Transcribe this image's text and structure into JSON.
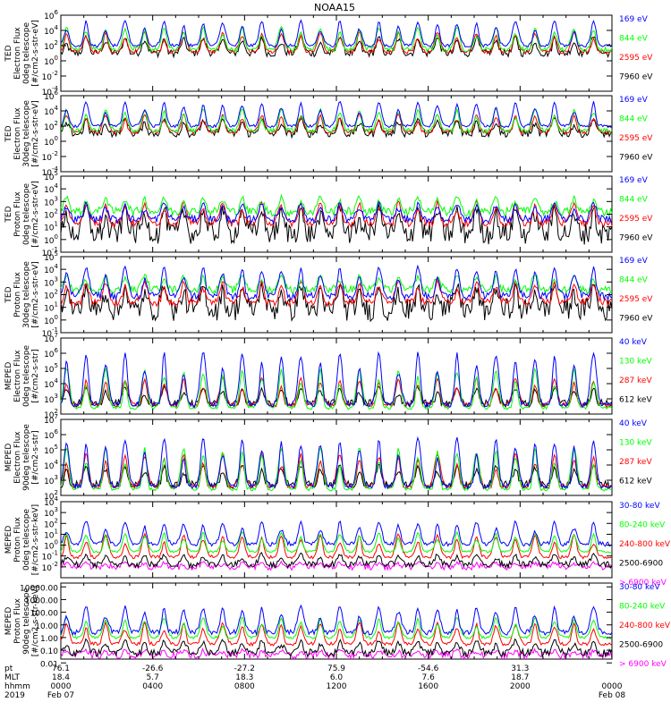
{
  "title": "NOAA15",
  "colors": {
    "black": "#000000",
    "blue": "#0000ff",
    "green": "#00ff00",
    "red": "#ff0000",
    "magenta": "#ff00ff",
    "gray": "#808080"
  },
  "chart_data": {
    "type": "line",
    "title": "NOAA15",
    "x_axis": {
      "row_labels": [
        "pt",
        "MLT",
        "hhmm",
        "2019"
      ],
      "ticks": [
        {
          "pt": "76.1",
          "mlt": "18.4",
          "hhmm": "0000",
          "date": "Feb 07"
        },
        {
          "pt": "-26.6",
          "mlt": "5.7",
          "hhmm": "0400",
          "date": ""
        },
        {
          "pt": "-27.2",
          "mlt": "18.3",
          "hhmm": "0800",
          "date": ""
        },
        {
          "pt": "75.9",
          "mlt": "6.0",
          "hhmm": "1200",
          "date": ""
        },
        {
          "pt": "-54.6",
          "mlt": "7.6",
          "hhmm": "1600",
          "date": ""
        },
        {
          "pt": "31.3",
          "mlt": "18.7",
          "hhmm": "2000",
          "date": ""
        },
        {
          "pt": "",
          "mlt": "",
          "hhmm": "0000",
          "date": "Feb 08"
        }
      ],
      "range_hours": [
        0,
        24
      ]
    },
    "panels": [
      {
        "ylabel": [
          "TED",
          "Electron Flux",
          "0deg telescope",
          "[#/cm2-s-str-eV]"
        ],
        "scale": "log",
        "ylim_exp": [
          -4,
          6
        ],
        "tick_labels": [
          {
            "v": "10",
            "e": "6"
          },
          {
            "v": "10",
            "e": "4"
          },
          {
            "v": "10",
            "e": "2"
          },
          {
            "v": "10",
            "e": "0"
          },
          {
            "v": "10",
            "e": "-2"
          },
          {
            "v": "10",
            "e": "-4"
          }
        ],
        "series": [
          {
            "name": "7960 eV",
            "color": "#000000",
            "base_exp": 1.0,
            "peak_exp": 3.2,
            "noise": 0.5
          },
          {
            "name": "2595 eV",
            "color": "#ff0000",
            "base_exp": 1.2,
            "peak_exp": 3.8,
            "noise": 0.25
          },
          {
            "name": "844 eV",
            "color": "#00ff00",
            "base_exp": 1.5,
            "peak_exp": 4.5,
            "noise": 0.3
          },
          {
            "name": "169 eV",
            "color": "#0000ff",
            "base_exp": 2.0,
            "peak_exp": 5.3,
            "noise": 0.2
          }
        ]
      },
      {
        "ylabel": [
          "TED",
          "Electron Flux",
          "30deg telescope",
          "[#/cm2-s-str-eV]"
        ],
        "scale": "log",
        "ylim_exp": [
          -4,
          6
        ],
        "tick_labels": [
          {
            "v": "10",
            "e": "6"
          },
          {
            "v": "10",
            "e": "4"
          },
          {
            "v": "10",
            "e": "2"
          },
          {
            "v": "10",
            "e": "0"
          },
          {
            "v": "10",
            "e": "-2"
          },
          {
            "v": "10",
            "e": "-4"
          }
        ],
        "series": [
          {
            "name": "7960 eV",
            "color": "#000000",
            "base_exp": 1.0,
            "peak_exp": 3.0,
            "noise": 0.5
          },
          {
            "name": "2595 eV",
            "color": "#ff0000",
            "base_exp": 1.2,
            "peak_exp": 3.6,
            "noise": 0.25
          },
          {
            "name": "844 eV",
            "color": "#00ff00",
            "base_exp": 1.4,
            "peak_exp": 4.3,
            "noise": 0.3
          },
          {
            "name": "169 eV",
            "color": "#0000ff",
            "base_exp": 2.0,
            "peak_exp": 5.2,
            "noise": 0.2
          }
        ]
      },
      {
        "ylabel": [
          "TED",
          "Proton Flux",
          "0deg telescope",
          "[#/cm2-s-str-eV]"
        ],
        "scale": "log",
        "ylim_exp": [
          -1,
          5
        ],
        "tick_labels": [
          {
            "v": "10",
            "e": "5"
          },
          {
            "v": "10",
            "e": "4"
          },
          {
            "v": "10",
            "e": "3"
          },
          {
            "v": "10",
            "e": "2"
          },
          {
            "v": "10",
            "e": "1"
          },
          {
            "v": "10",
            "e": "0"
          },
          {
            "v": "10",
            "e": "-1"
          }
        ],
        "series": [
          {
            "name": "7960 eV",
            "color": "#000000",
            "base_exp": 0.5,
            "peak_exp": 2.6,
            "noise": 0.9
          },
          {
            "name": "2595 eV",
            "color": "#ff0000",
            "base_exp": 1.3,
            "peak_exp": 3.0,
            "noise": 0.3
          },
          {
            "name": "844 eV",
            "color": "#00ff00",
            "base_exp": 2.2,
            "peak_exp": 3.4,
            "noise": 0.35
          },
          {
            "name": "169 eV",
            "color": "#0000ff",
            "base_exp": 1.6,
            "peak_exp": 2.9,
            "noise": 0.3
          }
        ]
      },
      {
        "ylabel": [
          "TED",
          "Proton Flux",
          "30deg telescope",
          "[#/cm2-s-str-eV]"
        ],
        "scale": "log",
        "ylim_exp": [
          -1,
          5
        ],
        "tick_labels": [
          {
            "v": "10",
            "e": "5"
          },
          {
            "v": "10",
            "e": "4"
          },
          {
            "v": "10",
            "e": "3"
          },
          {
            "v": "10",
            "e": "2"
          },
          {
            "v": "10",
            "e": "1"
          },
          {
            "v": "10",
            "e": "0"
          },
          {
            "v": "10",
            "e": "-1"
          }
        ],
        "series": [
          {
            "name": "7960 eV",
            "color": "#000000",
            "base_exp": 0.8,
            "peak_exp": 2.8,
            "noise": 0.9
          },
          {
            "name": "2595 eV",
            "color": "#ff0000",
            "base_exp": 1.4,
            "peak_exp": 3.1,
            "noise": 0.3
          },
          {
            "name": "844 eV",
            "color": "#00ff00",
            "base_exp": 2.4,
            "peak_exp": 3.6,
            "noise": 0.3
          },
          {
            "name": "169 eV",
            "color": "#0000ff",
            "base_exp": 1.9,
            "peak_exp": 4.2,
            "noise": 0.3
          }
        ]
      },
      {
        "ylabel": [
          "MEPED",
          "Electron Flux",
          "0deg telescope",
          "[#/cm2-s-str]"
        ],
        "scale": "log",
        "ylim_exp": [
          2,
          7
        ],
        "tick_labels": [
          {
            "v": "10",
            "e": "7"
          },
          {
            "v": "10",
            "e": "6"
          },
          {
            "v": "10",
            "e": "5"
          },
          {
            "v": "10",
            "e": "4"
          },
          {
            "v": "10",
            "e": "3"
          },
          {
            "v": "10",
            "e": "2"
          }
        ],
        "series": [
          {
            "name": "612 keV",
            "color": "#000000",
            "base_exp": 2.7,
            "peak_exp": 3.8,
            "noise": 0.25
          },
          {
            "name": "287 keV",
            "color": "#ff0000",
            "base_exp": 2.6,
            "peak_exp": 4.4,
            "noise": 0.15
          },
          {
            "name": "130 keV",
            "color": "#00ff00",
            "base_exp": 2.4,
            "peak_exp": 5.0,
            "noise": 0.1
          },
          {
            "name": "40 keV",
            "color": "#0000ff",
            "base_exp": 2.6,
            "peak_exp": 6.1,
            "noise": 0.15
          }
        ]
      },
      {
        "ylabel": [
          "MEPED",
          "Electron Flux",
          "90deg telescope",
          "[#/cm2-s-str]"
        ],
        "scale": "log",
        "ylim_exp": [
          2,
          7
        ],
        "tick_labels": [
          {
            "v": "10",
            "e": "7"
          },
          {
            "v": "10",
            "e": "6"
          },
          {
            "v": "10",
            "e": "5"
          },
          {
            "v": "10",
            "e": "4"
          },
          {
            "v": "10",
            "e": "3"
          },
          {
            "v": "10",
            "e": "2"
          }
        ],
        "series": [
          {
            "name": "612 keV",
            "color": "#000000",
            "base_exp": 2.7,
            "peak_exp": 4.0,
            "noise": 0.25
          },
          {
            "name": "287 keV",
            "color": "#ff0000",
            "base_exp": 2.6,
            "peak_exp": 4.8,
            "noise": 0.15
          },
          {
            "name": "130 keV",
            "color": "#00ff00",
            "base_exp": 2.4,
            "peak_exp": 5.2,
            "noise": 0.1
          },
          {
            "name": "40 keV",
            "color": "#0000ff",
            "base_exp": 2.6,
            "peak_exp": 5.8,
            "noise": 0.15
          }
        ]
      },
      {
        "ylabel": [
          "MEPED",
          "Proton Flux",
          "0deg telescope",
          "[#/cm2-s-str-keV]"
        ],
        "scale": "log",
        "ylim_exp": [
          -3,
          4
        ],
        "tick_labels": [
          {
            "v": "10",
            "e": "4"
          },
          {
            "v": "10",
            "e": "3"
          },
          {
            "v": "10",
            "e": "2"
          },
          {
            "v": "10",
            "e": "1"
          },
          {
            "v": "10",
            "e": "0"
          },
          {
            "v": "10",
            "e": "-1"
          },
          {
            "v": "10",
            "e": "-2"
          }
        ],
        "series": [
          {
            "name": "> 6900 keV",
            "color": "#ff00ff",
            "base_exp": -2.0,
            "peak_exp": -1.6,
            "noise": 0.3
          },
          {
            "name": "2500-6900",
            "color": "#000000",
            "base_exp": -1.8,
            "peak_exp": -0.8,
            "noise": 0.3
          },
          {
            "name": "240-800 keV",
            "color": "#ff0000",
            "base_exp": -1.1,
            "peak_exp": 1.0,
            "noise": 0.15
          },
          {
            "name": "80-240 keV",
            "color": "#00ff00",
            "base_exp": -0.6,
            "peak_exp": 1.2,
            "noise": 0.1
          },
          {
            "name": "30-80 keV",
            "color": "#0000ff",
            "base_exp": 0.1,
            "peak_exp": 2.2,
            "noise": 0.2
          }
        ]
      },
      {
        "ylabel": [
          "MEPED",
          "Proton Flux",
          "90deg telescope",
          "[#/cm2-s-str-keV]"
        ],
        "scale": "log",
        "ylim_exp": [
          -1.7,
          4.3
        ],
        "tick_labels": [
          {
            "v": "10000.00",
            "p": 4
          },
          {
            "v": "1000.00",
            "p": 3
          },
          {
            "v": "100.00",
            "p": 2
          },
          {
            "v": "10.00",
            "p": 1
          },
          {
            "v": "1.00",
            "p": 0
          },
          {
            "v": "0.10",
            "p": -1
          },
          {
            "v": "0.01",
            "p": -2
          }
        ],
        "series": [
          {
            "name": "> 6900 keV",
            "color": "#ff00ff",
            "base_exp": -1.4,
            "peak_exp": -1.0,
            "noise": 0.3
          },
          {
            "name": "2500-6900",
            "color": "#000000",
            "base_exp": -1.2,
            "peak_exp": -0.2,
            "noise": 0.3
          },
          {
            "name": "240-800 keV",
            "color": "#ff0000",
            "base_exp": -0.5,
            "peak_exp": 1.2,
            "noise": 0.15
          },
          {
            "name": "80-240 keV",
            "color": "#00ff00",
            "base_exp": 0.0,
            "peak_exp": 1.6,
            "noise": 0.1
          },
          {
            "name": "30-80 keV",
            "color": "#0000ff",
            "base_exp": 0.4,
            "peak_exp": 2.5,
            "noise": 0.2
          }
        ]
      }
    ]
  }
}
